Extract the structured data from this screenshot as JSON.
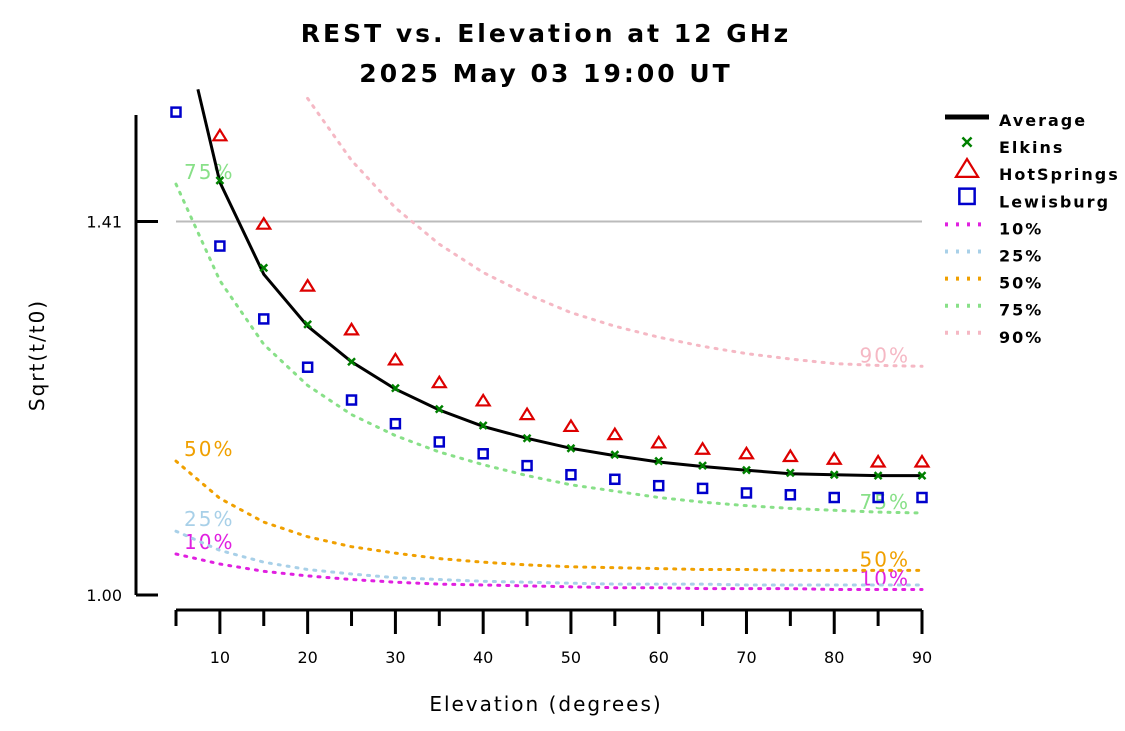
{
  "chart_data": {
    "type": "scatter",
    "title": "REST vs. Elevation at 12 GHz",
    "subtitle": "2025 May 03 19:00 UT",
    "xlabel": "Elevation (degrees)",
    "ylabel": "Sqrt(t/t0)",
    "xlim": [
      5,
      90
    ],
    "ylim": [
      1.0,
      1.54
    ],
    "x_ticks": [
      10,
      20,
      30,
      40,
      50,
      60,
      70,
      80,
      90
    ],
    "y_ticks": [
      {
        "value": 1.0,
        "label": "1.00"
      },
      {
        "value": 1.41,
        "label": "1.41"
      }
    ],
    "reference_line": {
      "value": 1.41,
      "color": "#bbbbbb"
    },
    "grid": false,
    "legend_position": "right",
    "x": [
      5,
      10,
      15,
      20,
      25,
      30,
      35,
      40,
      45,
      50,
      55,
      60,
      65,
      70,
      75,
      80,
      85,
      90
    ],
    "average": {
      "name": "Average",
      "color": "#000000",
      "x": [
        7.5,
        10,
        15,
        20,
        25,
        30,
        35,
        40,
        45,
        50,
        55,
        60,
        65,
        70,
        75,
        80,
        85,
        90
      ],
      "values": [
        1.555,
        1.453,
        1.352,
        1.295,
        1.256,
        1.226,
        1.203,
        1.185,
        1.172,
        1.161,
        1.153,
        1.146,
        1.141,
        1.137,
        1.133,
        1.132,
        1.131,
        1.131
      ]
    },
    "series": [
      {
        "name": "Elkins",
        "marker": "x",
        "color": "#008000",
        "x": [
          10,
          15,
          20,
          25,
          30,
          35,
          40,
          45,
          50,
          55,
          60,
          65,
          70,
          75,
          80,
          85,
          90
        ],
        "values": [
          1.455,
          1.359,
          1.297,
          1.256,
          1.227,
          1.204,
          1.186,
          1.172,
          1.161,
          1.154,
          1.147,
          1.142,
          1.137,
          1.134,
          1.132,
          1.131,
          1.131
        ]
      },
      {
        "name": "HotSprings",
        "marker": "triangle",
        "color": "#dd0000",
        "x": [
          10,
          15,
          20,
          25,
          30,
          35,
          40,
          45,
          50,
          55,
          60,
          65,
          70,
          75,
          80,
          85,
          90
        ],
        "values": [
          1.504,
          1.407,
          1.339,
          1.291,
          1.258,
          1.233,
          1.213,
          1.198,
          1.185,
          1.176,
          1.167,
          1.16,
          1.155,
          1.152,
          1.149,
          1.146,
          1.146
        ]
      },
      {
        "name": "Lewisburg",
        "marker": "square",
        "color": "#0000cc",
        "x": [
          5,
          10,
          15,
          20,
          25,
          30,
          35,
          40,
          45,
          50,
          55,
          60,
          65,
          70,
          75,
          80,
          85,
          90
        ],
        "values": [
          1.53,
          1.383,
          1.303,
          1.25,
          1.214,
          1.188,
          1.168,
          1.155,
          1.142,
          1.132,
          1.127,
          1.12,
          1.117,
          1.112,
          1.11,
          1.107,
          1.107,
          1.107
        ]
      }
    ],
    "percentiles": [
      {
        "name": "10%",
        "color": "#e020e0",
        "label": "10%",
        "label_left": "10%",
        "label_right": "10%",
        "x": [
          5,
          10,
          15,
          20,
          25,
          30,
          35,
          40,
          45,
          50,
          55,
          60,
          65,
          70,
          75,
          80,
          85,
          90
        ],
        "values": [
          1.045,
          1.034,
          1.026,
          1.021,
          1.017,
          1.014,
          1.012,
          1.011,
          1.01,
          1.009,
          1.008,
          1.008,
          1.007,
          1.007,
          1.007,
          1.006,
          1.006,
          1.006
        ]
      },
      {
        "name": "25%",
        "color": "#a8d0e8",
        "label": "25%",
        "label_left": "25%",
        "label_right": "",
        "x": [
          5,
          10,
          15,
          20,
          25,
          30,
          35,
          40,
          45,
          50,
          55,
          60,
          65,
          70,
          75,
          80,
          85,
          90
        ],
        "values": [
          1.07,
          1.049,
          1.036,
          1.028,
          1.023,
          1.019,
          1.017,
          1.015,
          1.014,
          1.013,
          1.012,
          1.012,
          1.012,
          1.011,
          1.011,
          1.011,
          1.011,
          1.011
        ]
      },
      {
        "name": "50%",
        "color": "#f0a000",
        "label": "50%",
        "label_left": "50%",
        "label_right": "50%",
        "x": [
          5,
          10,
          15,
          20,
          25,
          30,
          35,
          40,
          45,
          50,
          55,
          60,
          65,
          70,
          75,
          80,
          85,
          90
        ],
        "values": [
          1.147,
          1.106,
          1.08,
          1.064,
          1.053,
          1.046,
          1.04,
          1.036,
          1.033,
          1.031,
          1.03,
          1.029,
          1.028,
          1.028,
          1.027,
          1.027,
          1.027,
          1.027
        ]
      },
      {
        "name": "75%",
        "color": "#88e088",
        "label": "75%",
        "label_left": "75%",
        "label_right": "75%",
        "x": [
          5,
          10,
          15,
          20,
          25,
          30,
          35,
          40,
          45,
          50,
          55,
          60,
          65,
          70,
          75,
          80,
          85,
          90
        ],
        "values": [
          1.451,
          1.345,
          1.275,
          1.23,
          1.198,
          1.175,
          1.157,
          1.143,
          1.131,
          1.121,
          1.114,
          1.107,
          1.102,
          1.098,
          1.095,
          1.093,
          1.091,
          1.09
        ]
      },
      {
        "name": "90%",
        "color": "#f5b8c4",
        "label": "90%",
        "label_left": "",
        "label_right": "90%",
        "x": [
          20,
          25,
          30,
          35,
          40,
          45,
          50,
          55,
          60,
          65,
          70,
          75,
          80,
          85,
          90
        ],
        "values": [
          1.545,
          1.477,
          1.425,
          1.385,
          1.354,
          1.33,
          1.31,
          1.295,
          1.283,
          1.273,
          1.265,
          1.259,
          1.254,
          1.252,
          1.251
        ]
      }
    ]
  }
}
